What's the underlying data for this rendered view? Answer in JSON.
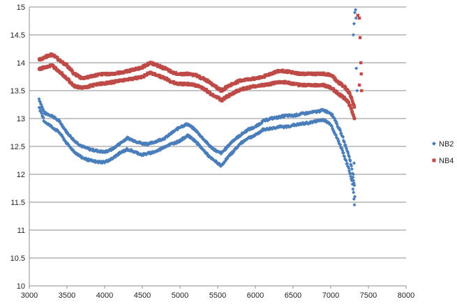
{
  "chart_data": {
    "type": "scatter",
    "title": "",
    "xlabel": "",
    "ylabel": "",
    "xlim": [
      3000,
      8000
    ],
    "ylim": [
      10,
      15
    ],
    "x_ticks": [
      3000,
      3500,
      4000,
      4500,
      5000,
      5500,
      6000,
      6500,
      7000,
      7500,
      8000
    ],
    "y_ticks": [
      10,
      10.5,
      11,
      11.5,
      12,
      12.5,
      13,
      13.5,
      14,
      14.5,
      15
    ],
    "grid": "horizontal",
    "legend_position": "right",
    "series": [
      {
        "name": "NB2",
        "color": "#4a7ebb",
        "marker": "diamond",
        "upper": {
          "x": [
            3130,
            3200,
            3300,
            3400,
            3500,
            3600,
            3700,
            3800,
            3900,
            4000,
            4100,
            4200,
            4300,
            4400,
            4500,
            4600,
            4700,
            4800,
            4900,
            5000,
            5100,
            5200,
            5300,
            5400,
            5500,
            5550,
            5600,
            5700,
            5800,
            5900,
            6000,
            6100,
            6200,
            6300,
            6400,
            6500,
            6600,
            6700,
            6800,
            6900,
            7000,
            7050,
            7100,
            7150,
            7200,
            7250,
            7280,
            7300,
            7320
          ],
          "y": [
            13.35,
            13.1,
            13.05,
            12.95,
            12.75,
            12.6,
            12.5,
            12.45,
            12.42,
            12.4,
            12.45,
            12.55,
            12.65,
            12.6,
            12.55,
            12.55,
            12.6,
            12.65,
            12.75,
            12.85,
            12.9,
            12.8,
            12.65,
            12.5,
            12.4,
            12.38,
            12.45,
            12.6,
            12.7,
            12.8,
            12.85,
            12.95,
            13.0,
            13.02,
            13.05,
            13.05,
            13.08,
            13.1,
            13.12,
            13.15,
            13.1,
            13.0,
            12.85,
            12.7,
            12.5,
            12.3,
            12.1,
            11.9,
            11.8
          ]
        },
        "lower": {
          "x": [
            3130,
            3200,
            3300,
            3400,
            3500,
            3600,
            3700,
            3800,
            3900,
            4000,
            4100,
            4200,
            4300,
            4400,
            4500,
            4600,
            4700,
            4800,
            4900,
            5000,
            5100,
            5200,
            5300,
            5400,
            5500,
            5550,
            5600,
            5700,
            5800,
            5900,
            6000,
            6100,
            6200,
            6300,
            6400,
            6500,
            6600,
            6700,
            6800,
            6900,
            7000,
            7050,
            7100,
            7150,
            7200,
            7250,
            7280,
            7300,
            7320
          ],
          "y": [
            13.2,
            12.95,
            12.85,
            12.75,
            12.55,
            12.4,
            12.3,
            12.25,
            12.22,
            12.22,
            12.28,
            12.38,
            12.45,
            12.4,
            12.35,
            12.38,
            12.42,
            12.5,
            12.55,
            12.6,
            12.7,
            12.6,
            12.45,
            12.3,
            12.2,
            12.15,
            12.25,
            12.4,
            12.55,
            12.65,
            12.7,
            12.8,
            12.82,
            12.85,
            12.85,
            12.88,
            12.9,
            12.92,
            12.95,
            12.98,
            12.9,
            12.75,
            12.6,
            12.45,
            12.25,
            12.05,
            11.9,
            11.7,
            11.4
          ]
        },
        "outliers": {
          "x": [
            7300,
            7310,
            7320,
            7330,
            7335,
            7340,
            7350,
            7300,
            7310,
            7320
          ],
          "y": [
            14.5,
            14.7,
            14.9,
            14.95,
            14.8,
            13.9,
            13.5,
            12.0,
            12.2,
            11.6
          ]
        }
      },
      {
        "name": "NB4",
        "color": "#be4b48",
        "marker": "square",
        "upper": {
          "x": [
            3130,
            3200,
            3300,
            3400,
            3500,
            3600,
            3700,
            3800,
            3900,
            4000,
            4100,
            4200,
            4300,
            4400,
            4500,
            4600,
            4700,
            4800,
            4900,
            5000,
            5100,
            5200,
            5300,
            5400,
            5500,
            5550,
            5600,
            5700,
            5800,
            5900,
            6000,
            6100,
            6200,
            6300,
            6400,
            6500,
            6600,
            6700,
            6800,
            6900,
            7000,
            7050,
            7100,
            7150,
            7200,
            7250,
            7280,
            7300,
            7320
          ],
          "y": [
            14.05,
            14.1,
            14.15,
            14.05,
            13.95,
            13.8,
            13.72,
            13.75,
            13.78,
            13.8,
            13.8,
            13.82,
            13.85,
            13.88,
            13.92,
            14.0,
            13.95,
            13.9,
            13.82,
            13.8,
            13.8,
            13.78,
            13.72,
            13.65,
            13.55,
            13.5,
            13.55,
            13.62,
            13.68,
            13.7,
            13.72,
            13.75,
            13.8,
            13.85,
            13.85,
            13.82,
            13.8,
            13.8,
            13.8,
            13.8,
            13.78,
            13.72,
            13.65,
            13.6,
            13.55,
            13.45,
            13.35,
            13.25,
            13.2
          ]
        },
        "lower": {
          "x": [
            3130,
            3200,
            3300,
            3400,
            3500,
            3600,
            3700,
            3800,
            3900,
            4000,
            4100,
            4200,
            4300,
            4400,
            4500,
            4600,
            4700,
            4800,
            4900,
            5000,
            5100,
            5200,
            5300,
            5400,
            5500,
            5550,
            5600,
            5700,
            5800,
            5900,
            6000,
            6100,
            6200,
            6300,
            6400,
            6500,
            6600,
            6700,
            6800,
            6900,
            7000,
            7050,
            7100,
            7150,
            7200,
            7250,
            7280,
            7300,
            7320
          ],
          "y": [
            13.88,
            13.92,
            13.95,
            13.85,
            13.72,
            13.58,
            13.55,
            13.58,
            13.62,
            13.63,
            13.65,
            13.68,
            13.7,
            13.72,
            13.75,
            13.82,
            13.78,
            13.72,
            13.65,
            13.62,
            13.62,
            13.6,
            13.55,
            13.45,
            13.38,
            13.32,
            13.38,
            13.45,
            13.52,
            13.55,
            13.58,
            13.6,
            13.62,
            13.65,
            13.65,
            13.62,
            13.6,
            13.6,
            13.6,
            13.6,
            13.55,
            13.5,
            13.45,
            13.4,
            13.35,
            13.25,
            13.15,
            13.05,
            13.0
          ]
        },
        "outliers": {
          "x": [
            7360,
            7380,
            7390,
            7400,
            7405,
            7410,
            7380
          ],
          "y": [
            14.85,
            14.8,
            14.45,
            14.0,
            13.8,
            13.5,
            13.6
          ]
        }
      }
    ]
  }
}
